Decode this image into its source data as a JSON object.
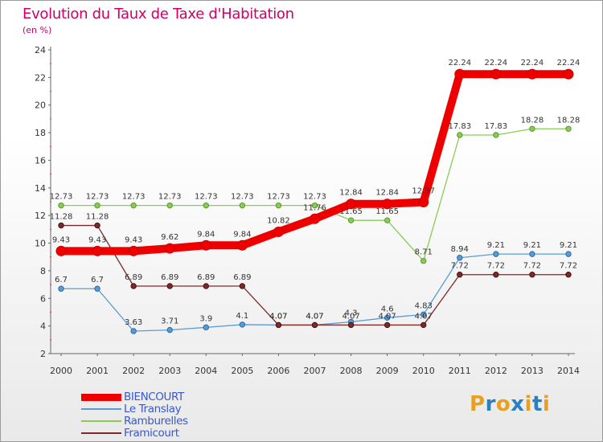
{
  "title": "Evolution du Taux de Taxe d'Habitation",
  "subtitle": "(en %)",
  "logo": {
    "letters": [
      "P",
      "r",
      "o",
      "x",
      "i",
      "t",
      "i"
    ],
    "colors": [
      "#e8a020",
      "#2a7fc0",
      "#e8a020",
      "#2a7fc0",
      "#e8a020",
      "#2a7fc0",
      "#e8a020"
    ]
  },
  "chart_data": {
    "type": "line",
    "x": [
      "2000",
      "2001",
      "2002",
      "2003",
      "2004",
      "2005",
      "2006",
      "2007",
      "2008",
      "2009",
      "2010",
      "2011",
      "2012",
      "2013",
      "2014"
    ],
    "ylim": [
      2,
      24
    ],
    "yticks": [
      2,
      4,
      6,
      8,
      10,
      12,
      14,
      16,
      18,
      20,
      22,
      24
    ],
    "grid": false,
    "legend_position": "bottom-left",
    "series": [
      {
        "name": "BIENCOURT",
        "color": "#ee0000",
        "values": [
          9.43,
          9.43,
          9.43,
          9.62,
          9.84,
          9.84,
          10.82,
          11.76,
          12.84,
          12.84,
          12.97,
          22.24,
          22.24,
          22.24,
          22.24
        ],
        "labels": [
          "9.43",
          "9.43",
          "9.43",
          "9.62",
          "9.84",
          "9.84",
          "10.82",
          "11.76",
          "12.84",
          "12.84",
          "12.97",
          "22.24",
          "22.24",
          "22.24",
          "22.24"
        ]
      },
      {
        "name": "Le Translay",
        "color": "#5b9bd5",
        "values": [
          6.7,
          6.7,
          3.63,
          3.71,
          3.9,
          4.1,
          4.07,
          4.07,
          4.3,
          4.6,
          4.83,
          8.94,
          9.21,
          9.21,
          9.21
        ],
        "labels": [
          "6.7",
          "6.7",
          "3.63",
          "3.71",
          "3.9",
          "4.1",
          "4.07",
          "4.07",
          "4.3",
          "4.6",
          "4.83",
          "8.94",
          "9.21",
          "9.21",
          "9.21"
        ]
      },
      {
        "name": "Ramburelles",
        "color": "#88cc55",
        "values": [
          12.73,
          12.73,
          12.73,
          12.73,
          12.73,
          12.73,
          12.73,
          12.73,
          11.65,
          11.65,
          8.71,
          17.83,
          17.83,
          18.28,
          18.28
        ],
        "labels": [
          "12.73",
          "12.73",
          "12.73",
          "12.73",
          "12.73",
          "12.73",
          "12.73",
          "12.73",
          "11.65",
          "11.65",
          "8.71",
          "17.83",
          "17.83",
          "18.28",
          "18.28"
        ]
      },
      {
        "name": "Framicourt",
        "color": "#7a2a2a",
        "values": [
          11.28,
          11.28,
          6.89,
          6.89,
          6.89,
          6.89,
          4.07,
          4.07,
          4.07,
          4.07,
          4.07,
          7.72,
          7.72,
          7.72,
          7.72
        ],
        "labels": [
          "11.28",
          "11.28",
          "6.89",
          "6.89",
          "6.89",
          "6.89",
          "4.07",
          "4.07",
          "4.07",
          "4.07",
          "4.07",
          "7.72",
          "7.72",
          "7.72",
          "7.72"
        ]
      }
    ]
  }
}
